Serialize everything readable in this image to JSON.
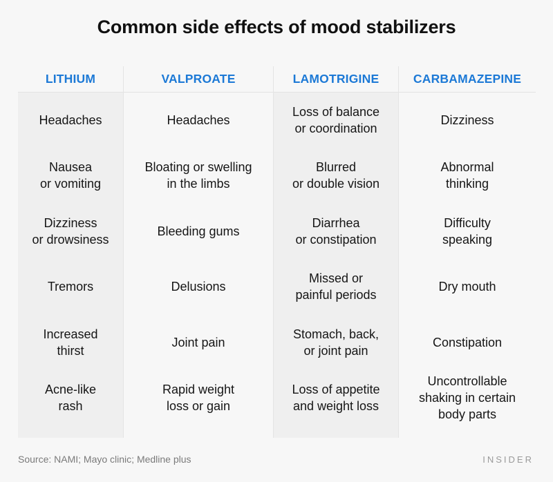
{
  "title": "Common side effects of mood stabilizers",
  "columns": [
    {
      "name": "LITHIUM",
      "effects": [
        "Headaches",
        "Nausea\nor vomiting",
        "Dizziness\nor drowsiness",
        "Tremors",
        "Increased\nthirst",
        "Acne-like\nrash"
      ]
    },
    {
      "name": "VALPROATE",
      "effects": [
        "Headaches",
        "Bloating or swelling\nin the limbs",
        "Bleeding gums",
        "Delusions",
        "Joint pain",
        "Rapid weight\nloss or gain"
      ]
    },
    {
      "name": "LAMOTRIGINE",
      "effects": [
        "Loss of balance\nor coordination",
        "Blurred\nor double vision",
        "Diarrhea\nor constipation",
        "Missed or\npainful periods",
        "Stomach, back,\nor joint pain",
        "Loss of appetite\nand weight loss"
      ]
    },
    {
      "name": "CARBAMAZEPINE",
      "effects": [
        "Dizziness",
        "Abnormal\nthinking",
        "Difficulty\nspeaking",
        "Dry mouth",
        "Constipation",
        "Uncontrollable\nshaking in certain\nbody parts"
      ]
    }
  ],
  "footer": {
    "source": "Source: NAMI; Mayo clinic; Medline plus",
    "logo": "INSIDER"
  },
  "colors": {
    "header": "#1c79d6",
    "shaded": "#efefef",
    "background": "#f7f7f7"
  }
}
